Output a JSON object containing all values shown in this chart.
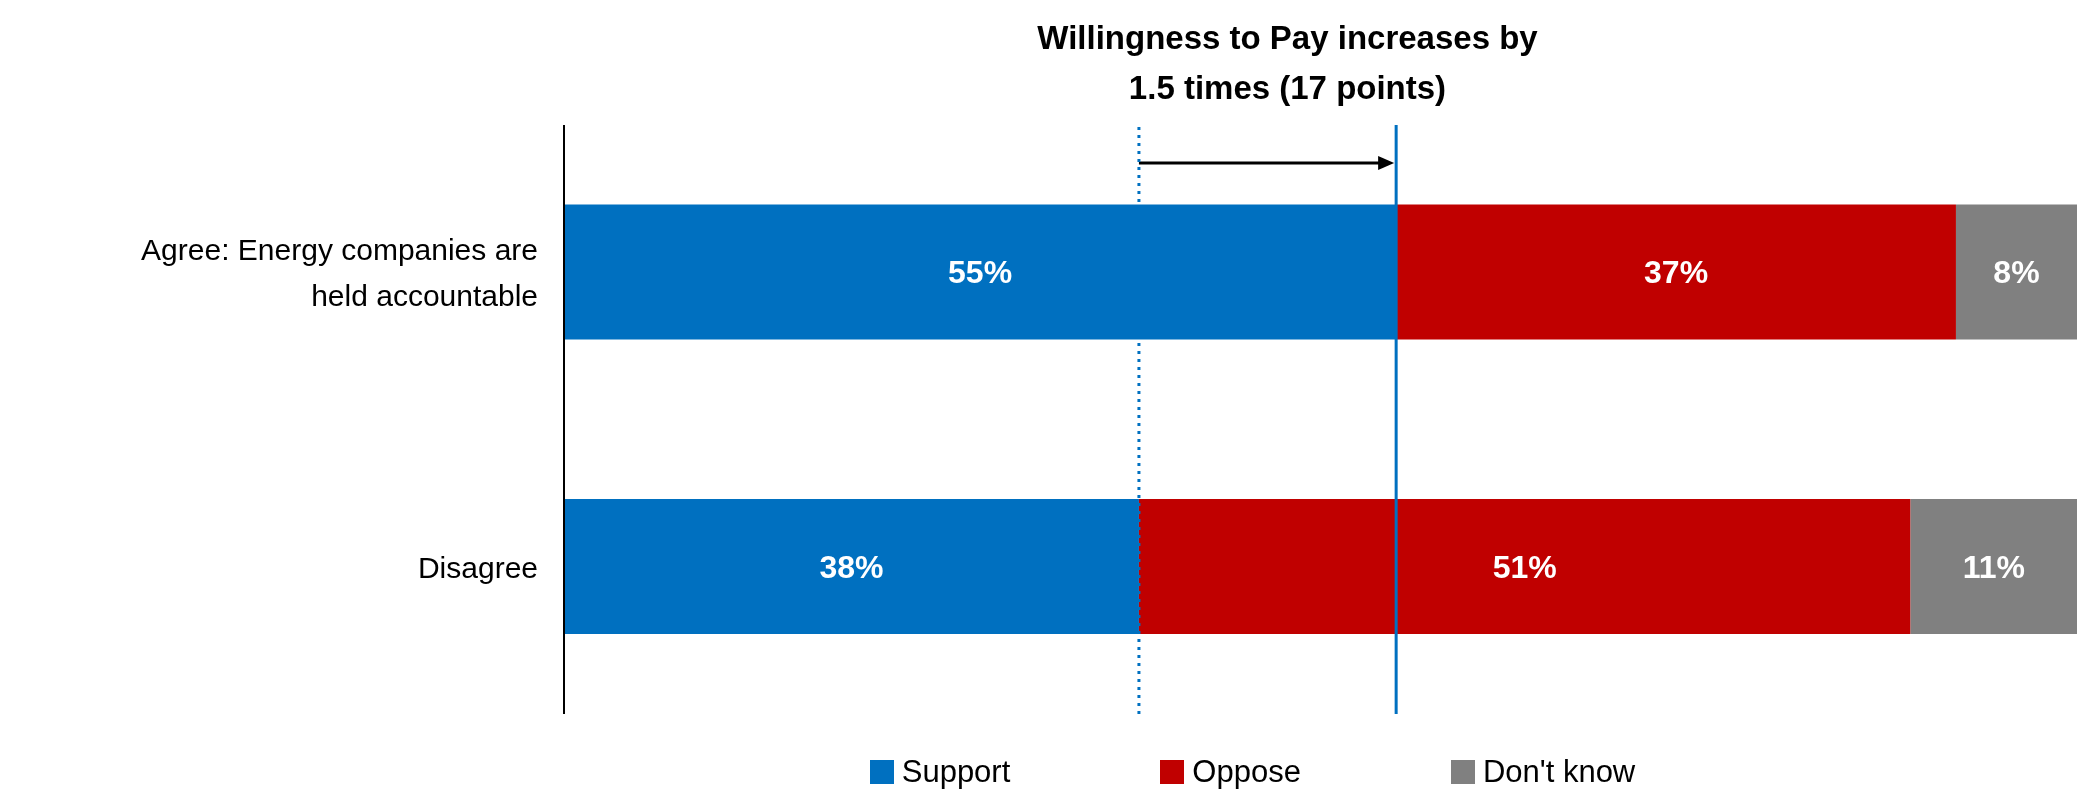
{
  "chart_data": {
    "type": "bar",
    "orientation": "horizontal",
    "stacked": true,
    "title": "Willingness to Pay increases by",
    "subtitle": "1.5 times (17 points)",
    "categories": [
      "Agree: Energy companies are held accountable",
      "Disagree"
    ],
    "series": [
      {
        "name": "Support",
        "color": "#0070c0",
        "values": [
          55,
          38
        ],
        "value_labels": [
          "55%",
          "38%"
        ]
      },
      {
        "name": "Oppose",
        "color": "#c00000",
        "values": [
          37,
          51
        ],
        "value_labels": [
          "37%",
          "51%"
        ]
      },
      {
        "name": "Don't know",
        "color": "#808080",
        "values": [
          8,
          11
        ],
        "value_labels": [
          "8%",
          "11%"
        ]
      }
    ],
    "xlim": [
      0,
      100
    ],
    "tick_labels": "y",
    "grid": false,
    "legend": "bottom",
    "ref_lines": [
      {
        "axis": "x",
        "value": 38,
        "color": "#0070c0",
        "line_style": "dotted"
      },
      {
        "axis": "x",
        "value": 55,
        "color": "#0070c0",
        "line_style": "solid"
      }
    ]
  }
}
